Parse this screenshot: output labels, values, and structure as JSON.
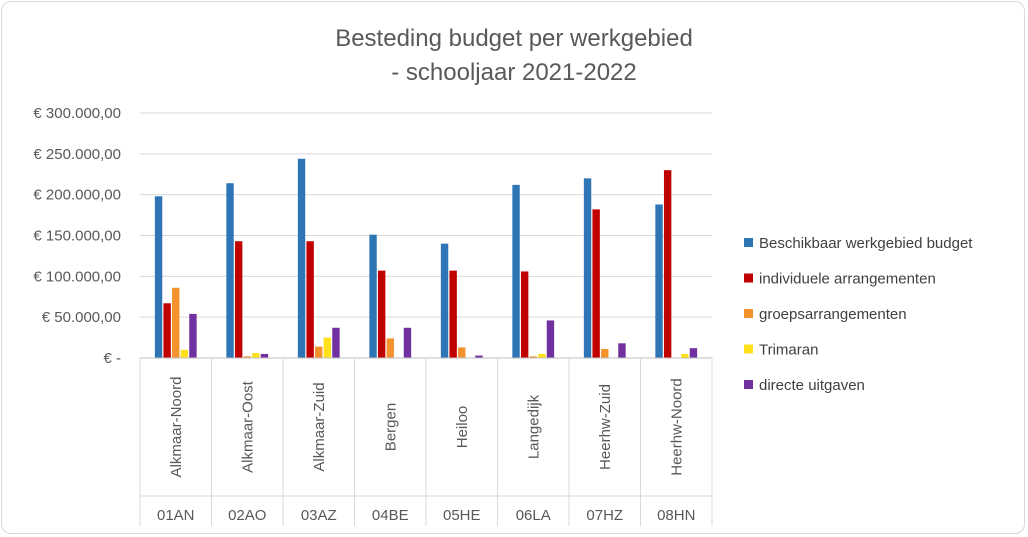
{
  "chart_data": {
    "type": "bar",
    "title": [
      "Besteding budget per werkgebied",
      "- schooljaar 2021-2022"
    ],
    "categories": [
      "Alkmaar-Noord",
      "Alkmaar-Oost",
      "Alkmaar-Zuid",
      "Bergen",
      "Heiloo",
      "Langedijk",
      "Heerhw-Zuid",
      "Heerhw-Noord"
    ],
    "group_labels": [
      "01AN",
      "02AO",
      "03AZ",
      "04BE",
      "05HE",
      "06LA",
      "07HZ",
      "08HN"
    ],
    "series": [
      {
        "name": "Beschikbaar werkgebied budget",
        "color": "#2e75b6",
        "values": [
          198000,
          214000,
          244000,
          151000,
          140000,
          212000,
          220000,
          188000
        ]
      },
      {
        "name": "individuele arrangementen",
        "color": "#c00000",
        "values": [
          67000,
          143000,
          143000,
          107000,
          107000,
          106000,
          182000,
          230000
        ]
      },
      {
        "name": "groepsarrangementen",
        "color": "#f4922e",
        "values": [
          86000,
          2000,
          14000,
          24000,
          13000,
          2000,
          11000,
          0
        ]
      },
      {
        "name": "Trimaran",
        "color": "#ffe01b",
        "values": [
          10000,
          6000,
          25000,
          0,
          0,
          5000,
          0,
          5000
        ]
      },
      {
        "name": "directe uitgaven",
        "color": "#7030a0",
        "values": [
          54000,
          5000,
          37000,
          37000,
          3000,
          46000,
          18000,
          12000
        ]
      }
    ],
    "ylim": [
      0,
      300000
    ],
    "yticks": [
      0,
      50000,
      100000,
      150000,
      200000,
      250000,
      300000
    ],
    "ytick_labels": [
      "€ -",
      "€ 50.000,00",
      "€ 100.000,00",
      "€ 150.000,00",
      "€ 200.000,00",
      "€ 250.000,00",
      "€ 300.000,00"
    ],
    "grid": true,
    "legend_position": "right"
  }
}
